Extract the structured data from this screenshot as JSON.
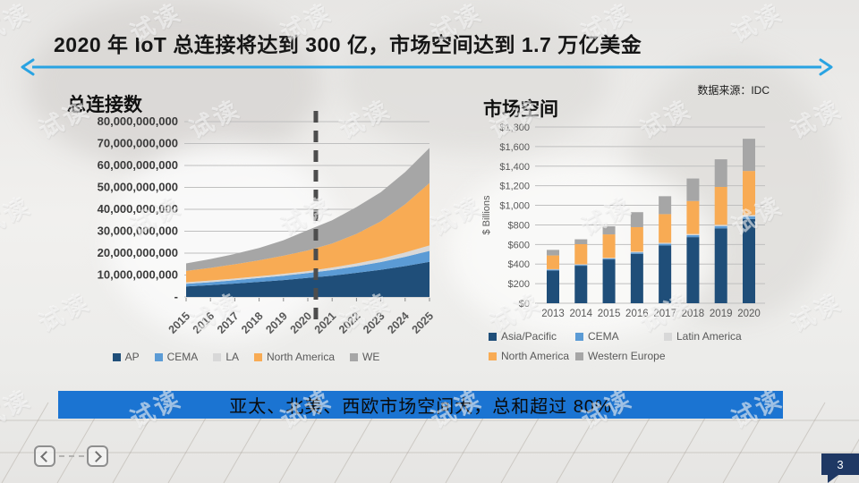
{
  "slide": {
    "title": "2020 年 IoT 总连接将达到 300 亿，市场空间达到 1.7 万亿美金",
    "source_note": "数据来源：IDC",
    "banner": "亚太、北美、西欧市场空间大，总和超过 80%",
    "page_number": "3",
    "watermark": "试读"
  },
  "colors": {
    "banner_blue": "#1b74d2",
    "arrow_blue": "#29a3e2",
    "badge_navy": "#1f3864",
    "grid_gray": "#bfbfbf",
    "axis_label_dark": "#3a3a3a",
    "axis_label_gray": "#595959"
  },
  "chart_data": [
    {
      "type": "area",
      "stacked": true,
      "title": "总连接数",
      "x": [
        "2015",
        "2016",
        "2017",
        "2018",
        "2019",
        "2020",
        "2021",
        "2022",
        "2023",
        "2024",
        "2025"
      ],
      "series": [
        {
          "name": "AP",
          "color": "#1f4e79",
          "values": [
            4.8,
            5.4,
            6.1,
            6.9,
            7.7,
            8.7,
            9.7,
            11.0,
            12.4,
            14.1,
            16.0
          ]
        },
        {
          "name": "CEMA",
          "color": "#5b9bd5",
          "values": [
            1.2,
            1.35,
            1.55,
            1.75,
            2.0,
            2.2,
            2.6,
            3.0,
            3.5,
            4.2,
            5.0
          ]
        },
        {
          "name": "LA",
          "color": "#d8d8d8",
          "values": [
            0.7,
            0.73,
            0.77,
            0.8,
            0.85,
            0.9,
            1.1,
            1.3,
            1.6,
            2.0,
            2.5
          ]
        },
        {
          "name": "North America",
          "color": "#f8ab54",
          "values": [
            5.2,
            5.8,
            6.5,
            7.3,
            8.3,
            9.4,
            11.0,
            13.5,
            17.0,
            22.0,
            28.5
          ]
        },
        {
          "name": "WE",
          "color": "#a6a6a6",
          "values": [
            3.4,
            4.0,
            4.7,
            5.6,
            7.0,
            9.3,
            10.6,
            12.2,
            13.3,
            14.7,
            16.0
          ]
        }
      ],
      "unit": "billions (counts plotted as 1,000,000,000s)",
      "ylim": [
        0,
        80
      ],
      "ytick_step": 10,
      "ytick_zero_label": "-",
      "grid": true,
      "legend_position": "bottom",
      "annotation": {
        "type": "dashed-vline",
        "x": 2020.33
      }
    },
    {
      "type": "bar",
      "stacked": true,
      "title": "市场空间",
      "ylabel": "$ Billions",
      "categories": [
        "2013",
        "2014",
        "2015",
        "2016",
        "2017",
        "2018",
        "2019",
        "2020"
      ],
      "series": [
        {
          "name": "Asia/Pacific",
          "color": "#1f4e79",
          "values": [
            335,
            383,
            447,
            505,
            590,
            675,
            765,
            860
          ]
        },
        {
          "name": "CEMA",
          "color": "#5b9bd5",
          "values": [
            8,
            9,
            10,
            14,
            17,
            20,
            23,
            26
          ]
        },
        {
          "name": "Latin America",
          "color": "#d8d8d8",
          "values": [
            5,
            6,
            6,
            8,
            10,
            12,
            13,
            15
          ]
        },
        {
          "name": "North America",
          "color": "#f8ab54",
          "values": [
            140,
            205,
            240,
            250,
            293,
            337,
            387,
            450
          ]
        },
        {
          "name": "Western Europe",
          "color": "#a6a6a6",
          "values": [
            57,
            50,
            83,
            153,
            183,
            230,
            282,
            329
          ]
        }
      ],
      "totals": [
        545,
        653,
        786,
        930,
        1093,
        1274,
        1470,
        1680
      ],
      "ylim": [
        0,
        1800
      ],
      "ytick_step": 200,
      "grid": true,
      "legend_position": "bottom"
    }
  ]
}
